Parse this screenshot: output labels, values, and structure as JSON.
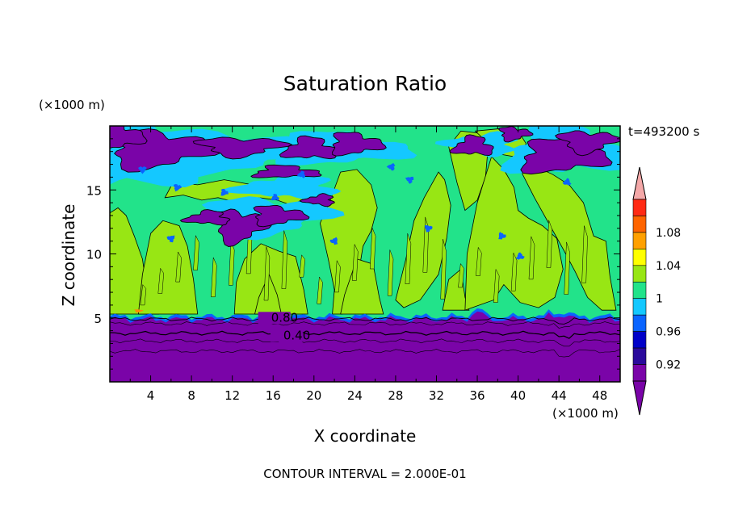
{
  "chart_data": {
    "type": "heatmap",
    "title": "Saturation Ratio",
    "xlabel": "X coordinate",
    "ylabel": "Z coordinate",
    "x_unit": "(×1000 m)",
    "y_unit": "(×1000 m)",
    "time_label": "t=493200 s",
    "footer": "CONTOUR INTERVAL = 2.000E-01",
    "xlim": [
      0,
      50
    ],
    "ylim": [
      0,
      20
    ],
    "x_ticks": [
      4,
      8,
      12,
      16,
      20,
      24,
      28,
      32,
      36,
      40,
      44,
      48
    ],
    "y_ticks": [
      5,
      10,
      15
    ],
    "contour_labels": [
      {
        "text": "0.80",
        "x": 15.8,
        "z": 4.9
      },
      {
        "text": "0.40",
        "x": 17.0,
        "z": 3.5
      }
    ],
    "colorbar": {
      "bands": [
        {
          "value": 0.9,
          "color": "#7a04a8"
        },
        {
          "value": 0.92,
          "color": "#2a0a9c"
        },
        {
          "value": 0.94,
          "color": "#0000c8"
        },
        {
          "value": 0.96,
          "color": "#0a64ff"
        },
        {
          "value": 0.98,
          "color": "#14c8ff"
        },
        {
          "value": 1.0,
          "color": "#22e38a"
        },
        {
          "value": 1.02,
          "color": "#98e614"
        },
        {
          "value": 1.04,
          "color": "#ffff00"
        },
        {
          "value": 1.06,
          "color": "#ffa000"
        },
        {
          "value": 1.08,
          "color": "#ff6400"
        },
        {
          "value": 1.1,
          "color": "#ff2a14"
        }
      ],
      "over_color": "#f4a8a8",
      "under_color": "#7a04a8",
      "labels": [
        "0.92",
        "0.96",
        "1",
        "1.04",
        "1.08"
      ]
    },
    "regions": {
      "low_purple_top_z": 5.0,
      "green_base": "#22e38a",
      "lime": "#98e614",
      "purple": "#7a04a8",
      "blue": "#0a64ff",
      "cyan": "#14c8ff"
    }
  }
}
